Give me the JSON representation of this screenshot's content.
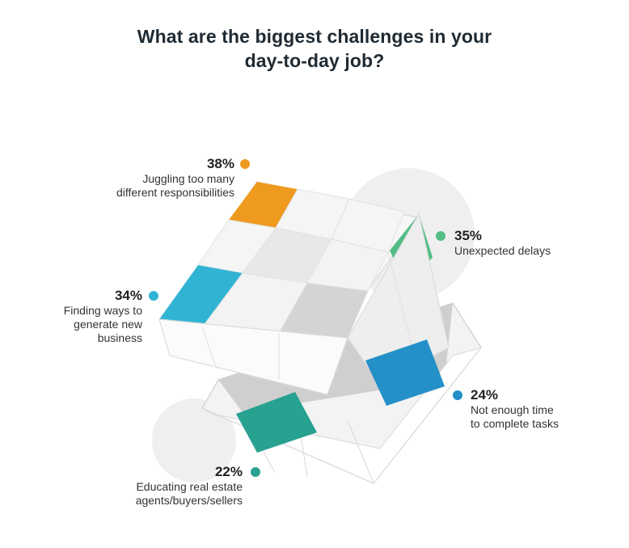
{
  "title": "What are the biggest challenges in your day-to-day job?",
  "chart_data": {
    "type": "bar",
    "title": "What are the biggest challenges in your day-to-day job?",
    "unit": "%",
    "categories": [
      "Juggling too many different responsibilities",
      "Unexpected delays",
      "Finding ways to generate new business",
      "Not enough time to complete tasks",
      "Educating real estate agents/buyers/sellers"
    ],
    "values": [
      38,
      35,
      34,
      24,
      22
    ],
    "points": [
      {
        "pct": "38%",
        "lines": [
          "Juggling too many",
          "different responsibilities"
        ],
        "color": "#ee9a1f"
      },
      {
        "pct": "35%",
        "lines": [
          "Unexpected delays"
        ],
        "color": "#52bd86"
      },
      {
        "pct": "34%",
        "lines": [
          "Finding ways to",
          "generate new",
          "business"
        ],
        "color": "#31b4d4"
      },
      {
        "pct": "24%",
        "lines": [
          "Not enough time",
          "to complete tasks"
        ],
        "color": "#2390c8"
      },
      {
        "pct": "22%",
        "lines": [
          "Educating real estate",
          "agents/buyers/sellers"
        ],
        "color": "#27a190"
      }
    ]
  }
}
